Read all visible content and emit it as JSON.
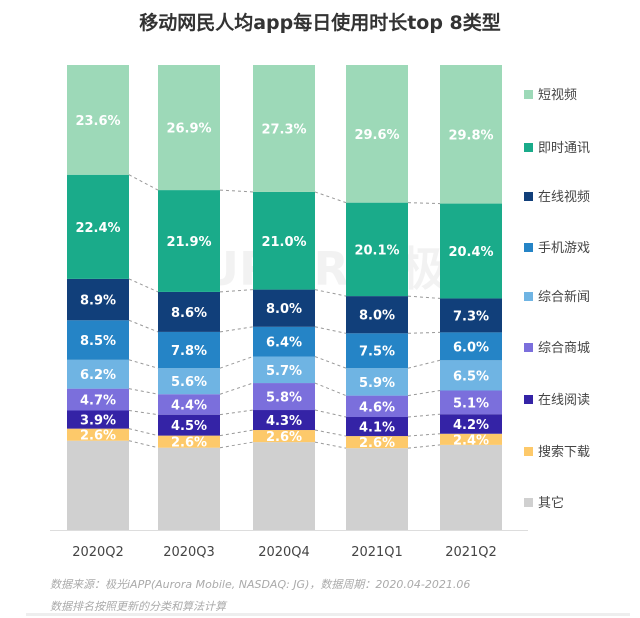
{
  "chart_data": {
    "type": "bar",
    "stacked": true,
    "title": "移动网民人均app每日使用时长top 8类型",
    "categories": [
      "2020Q2",
      "2020Q3",
      "2020Q4",
      "2021Q1",
      "2021Q2"
    ],
    "ylim": [
      0,
      100
    ],
    "legend_position": "right",
    "grid": false,
    "series": [
      {
        "name": "其它",
        "color": "#d0d0d0",
        "values": [
          19.2,
          17.7,
          18.9,
          17.6,
          18.3
        ],
        "labeled": false
      },
      {
        "name": "搜索下载",
        "color": "#fdc96a",
        "values": [
          2.6,
          2.6,
          2.6,
          2.6,
          2.4
        ],
        "labeled": true
      },
      {
        "name": "在线阅读",
        "color": "#3423a6",
        "values": [
          3.9,
          4.5,
          4.3,
          4.1,
          4.2
        ],
        "labeled": true
      },
      {
        "name": "综合商城",
        "color": "#7b6fdc",
        "values": [
          4.7,
          4.4,
          5.8,
          4.6,
          5.1
        ],
        "labeled": true
      },
      {
        "name": "综合新闻",
        "color": "#6fb4e3",
        "values": [
          6.2,
          5.6,
          5.7,
          5.9,
          6.5
        ],
        "labeled": true
      },
      {
        "name": "手机游戏",
        "color": "#2584c6",
        "values": [
          8.5,
          7.8,
          6.4,
          7.5,
          6.0
        ],
        "labeled": true
      },
      {
        "name": "在线视频",
        "color": "#113f7a",
        "values": [
          8.9,
          8.6,
          8.0,
          8.0,
          7.3
        ],
        "labeled": true
      },
      {
        "name": "即时通讯",
        "color": "#1aab8a",
        "values": [
          22.4,
          21.9,
          21.0,
          20.1,
          20.4
        ],
        "labeled": true
      },
      {
        "name": "短视频",
        "color": "#9dd9b8",
        "values": [
          23.6,
          26.9,
          27.3,
          29.6,
          29.8
        ],
        "labeled": true
      }
    ]
  },
  "footer": {
    "source": "数据来源：极光iAPP(Aurora Mobile, NASDAQ: JG)，数据周期：2020.04-2021.06",
    "note": "数据排名按照更新的分类和算法计算"
  },
  "watermark": "AURORA 极光"
}
